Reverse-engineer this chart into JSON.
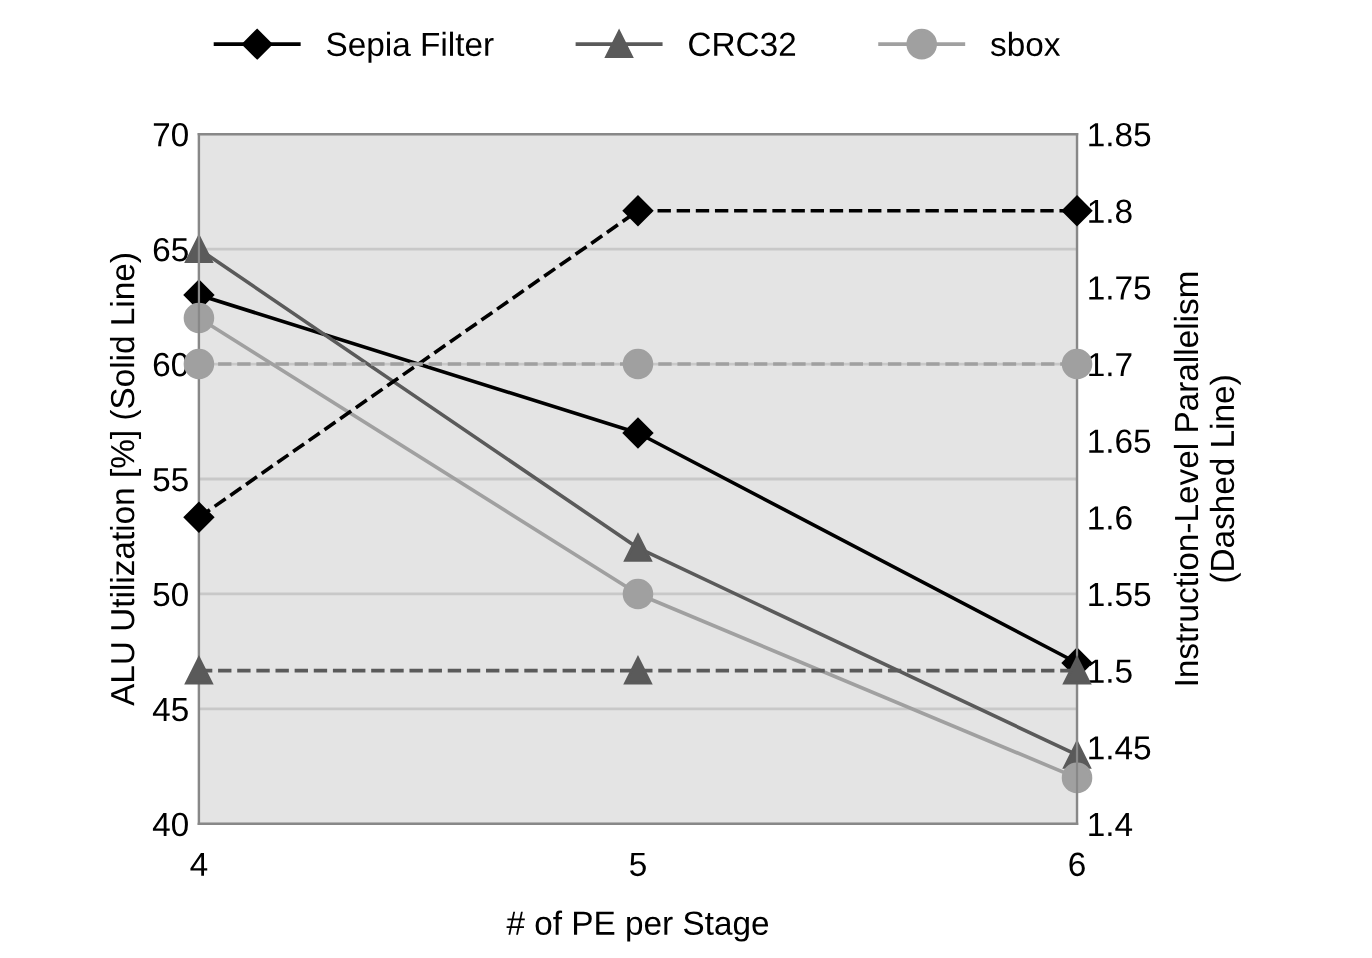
{
  "chart_data": {
    "type": "line",
    "xlabel": "# of PE per Stage",
    "ylabel": "ALU Utilization [%] (Solid Line)",
    "y2label": "Instruction-Level Parallelism\n(Dashed Line)",
    "categories": [
      "4",
      "5",
      "6"
    ],
    "series": [
      {
        "name": "Sepia Filter",
        "color": "#000000",
        "values": [
          63,
          57,
          47
        ],
        "marker": "diamond",
        "line_style": "solid"
      },
      {
        "name": "CRC32",
        "color": "#5a5a5a",
        "values": [
          65,
          52,
          43
        ],
        "marker": "triangle",
        "line_style": "solid"
      },
      {
        "name": "sbox",
        "color": "#a0a0a0",
        "values": [
          62,
          50,
          42
        ],
        "marker": "circle",
        "line_style": "solid"
      },
      {
        "color": "#000000",
        "values": [
          1.6,
          1.8,
          1.8
        ],
        "marker": "diamond",
        "line_style": "dashed",
        "axis": "y2"
      },
      {
        "color": "#5a5a5a",
        "values": [
          1.5,
          1.5,
          1.5
        ],
        "marker": "triangle",
        "line_style": "dashed",
        "axis": "y2"
      },
      {
        "color": "#a0a0a0",
        "values": [
          1.7,
          1.7,
          1.7
        ],
        "marker": "circle",
        "line_style": "dashed",
        "axis": "y2"
      }
    ],
    "ylim": [
      40,
      70
    ],
    "yticks": [
      40,
      45,
      50,
      55,
      60,
      65,
      70
    ],
    "y2lim": [
      1.4,
      1.85
    ],
    "y2ticks": [
      {
        "value": 1.4,
        "label": "1.4"
      },
      {
        "value": 1.45,
        "label": "1.45"
      },
      {
        "value": 1.5,
        "label": "1.5"
      },
      {
        "value": 1.55,
        "label": "1.55"
      },
      {
        "value": 1.6,
        "label": "1.6"
      },
      {
        "value": 1.65,
        "label": "1.65"
      },
      {
        "value": 1.7,
        "label": "1.7"
      },
      {
        "value": 1.75,
        "label": "1.75"
      },
      {
        "value": 1.8,
        "label": "1.8"
      },
      {
        "value": 1.85,
        "label": "1.85"
      }
    ],
    "grid": "y",
    "legend": "top"
  }
}
